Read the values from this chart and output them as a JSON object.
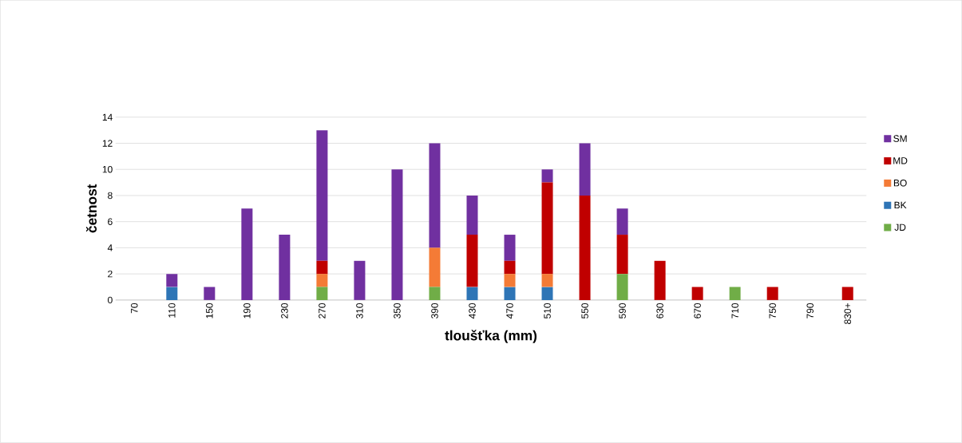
{
  "chart_data": {
    "type": "bar",
    "stacked": true,
    "xlabel": "tloušťka (mm)",
    "ylabel": "četnost",
    "categories": [
      "70",
      "110",
      "150",
      "190",
      "230",
      "270",
      "310",
      "350",
      "390",
      "430",
      "470",
      "510",
      "550",
      "590",
      "630",
      "670",
      "710",
      "750",
      "790",
      "830+"
    ],
    "series": [
      {
        "name": "JD",
        "color": "#70ad47",
        "values": [
          0,
          0,
          0,
          0,
          0,
          1,
          0,
          0,
          1,
          0,
          0,
          0,
          0,
          2,
          0,
          0,
          1,
          0,
          0,
          0
        ]
      },
      {
        "name": "BK",
        "color": "#2e75b6",
        "values": [
          0,
          1,
          0,
          0,
          0,
          0,
          0,
          0,
          0,
          1,
          1,
          1,
          0,
          0,
          0,
          0,
          0,
          0,
          0,
          0
        ]
      },
      {
        "name": "BO",
        "color": "#f47b36",
        "values": [
          0,
          0,
          0,
          0,
          0,
          1,
          0,
          0,
          3,
          0,
          1,
          1,
          0,
          0,
          0,
          0,
          0,
          0,
          0,
          0
        ]
      },
      {
        "name": "MD",
        "color": "#c00000",
        "values": [
          0,
          0,
          0,
          0,
          0,
          1,
          0,
          0,
          0,
          4,
          1,
          7,
          8,
          3,
          3,
          1,
          0,
          1,
          0,
          1
        ]
      },
      {
        "name": "SM",
        "color": "#7030a0",
        "values": [
          0,
          1,
          1,
          7,
          5,
          10,
          3,
          10,
          8,
          3,
          2,
          1,
          4,
          2,
          0,
          0,
          0,
          0,
          0,
          0
        ]
      }
    ],
    "ylim": [
      0,
      14
    ],
    "yticks": [
      0,
      2,
      4,
      6,
      8,
      10,
      12,
      14
    ],
    "grid": "y",
    "legend": "right"
  }
}
